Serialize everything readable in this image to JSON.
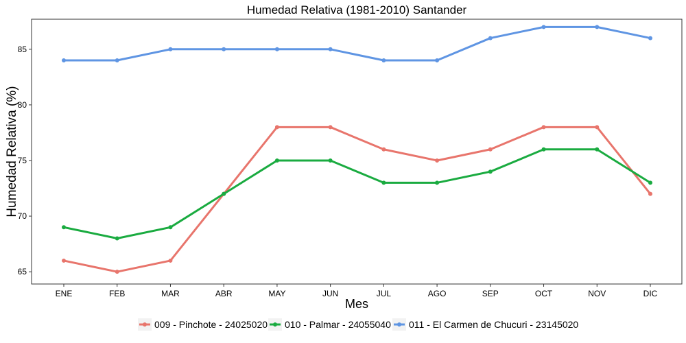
{
  "chart_data": {
    "type": "line",
    "title": "Humedad Relativa (1981-2010)  Santander",
    "xlabel": "Mes",
    "ylabel": "Humedad Relativa  (%)",
    "categories": [
      "ENE",
      "FEB",
      "MAR",
      "ABR",
      "MAY",
      "JUN",
      "JUL",
      "AGO",
      "SEP",
      "OCT",
      "NOV",
      "DIC"
    ],
    "ylim": [
      63.9,
      87.7
    ],
    "yticks": [
      65,
      70,
      75,
      80,
      85
    ],
    "grid": false,
    "legend_position": "bottom",
    "series": [
      {
        "name": "009 - Pinchote - 24025020",
        "color": "#E8756C",
        "values": [
          66,
          65,
          66,
          72,
          78,
          78,
          76,
          75,
          76,
          78,
          78,
          72
        ]
      },
      {
        "name": "010 - Palmar - 24055040",
        "color": "#1AAB40",
        "values": [
          69,
          68,
          69,
          72,
          75,
          75,
          73,
          73,
          74,
          76,
          76,
          73
        ]
      },
      {
        "name": "011 - El Carmen de Chucuri - 23145020",
        "color": "#5F95E3",
        "values": [
          84,
          84,
          85,
          85,
          85,
          85,
          84,
          84,
          86,
          87,
          87,
          86
        ]
      }
    ]
  }
}
